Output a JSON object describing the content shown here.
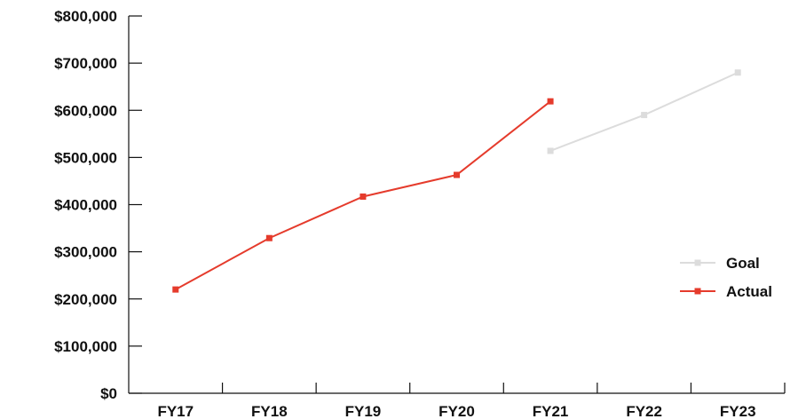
{
  "chart_data": {
    "type": "line",
    "categories": [
      "FY17",
      "FY18",
      "FY19",
      "FY20",
      "FY21",
      "FY22",
      "FY23"
    ],
    "series": [
      {
        "name": "Goal",
        "color": "#dcdcdc",
        "values": [
          null,
          null,
          null,
          null,
          514000,
          590000,
          680000
        ]
      },
      {
        "name": "Actual",
        "color": "#e53b2c",
        "values": [
          220000,
          329000,
          417000,
          463000,
          619000,
          null,
          null
        ]
      }
    ],
    "y_ticks": [
      "$0",
      "$100,000",
      "$200,000",
      "$300,000",
      "$400,000",
      "$500,000",
      "$600,000",
      "$700,000",
      "$800,000"
    ],
    "ylim": [
      0,
      800000
    ],
    "grid": false,
    "legend_position": "right"
  }
}
